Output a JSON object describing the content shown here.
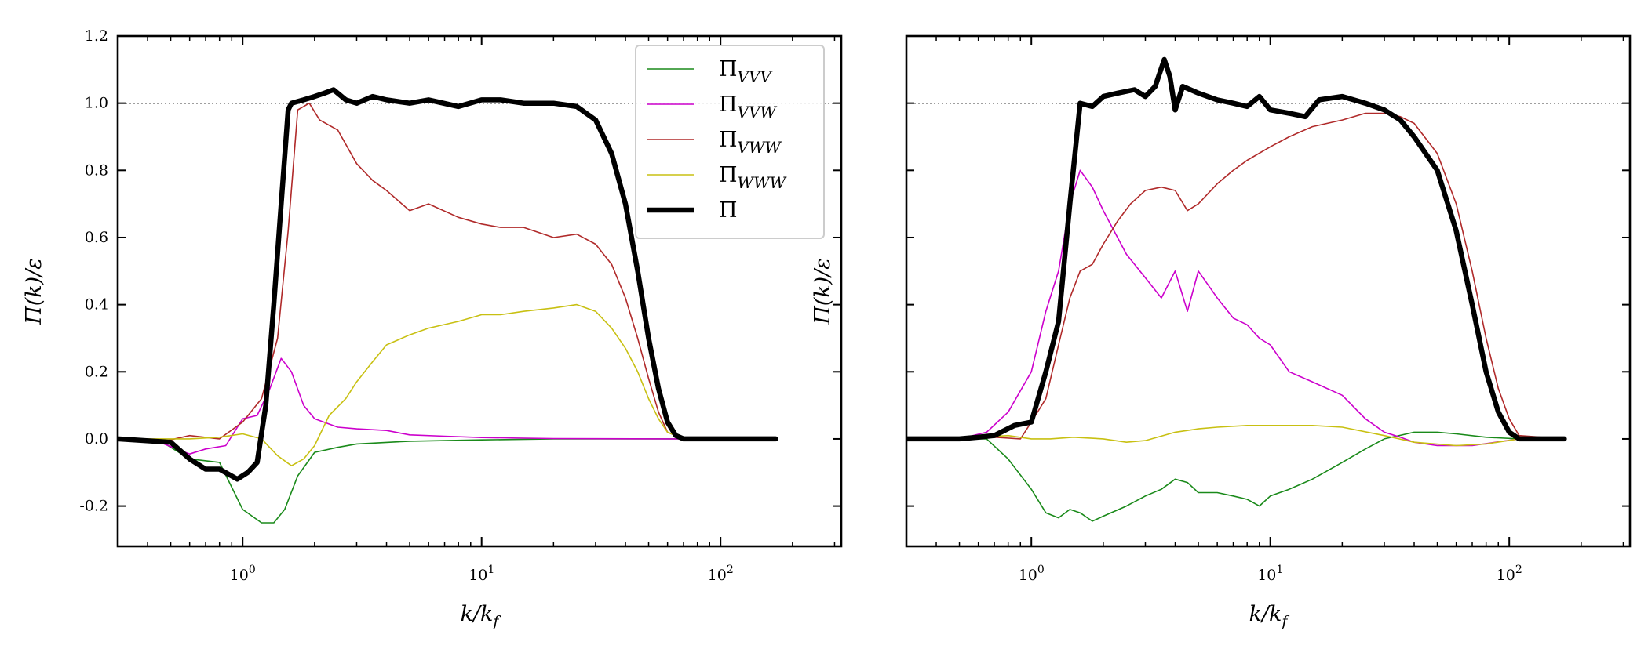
{
  "chart_data": [
    {
      "type": "line",
      "xscale": "log",
      "xlim": [
        0.3,
        320
      ],
      "ylim": [
        -0.32,
        1.2
      ],
      "xlabel": "k/k_f",
      "ylabel": "Π(k)/ε",
      "yticks": [
        "-0.2",
        "0.0",
        "0.2",
        "0.4",
        "0.6",
        "0.8",
        "1.0",
        "1.2"
      ],
      "xticks": [
        "10^0",
        "10^1",
        "10^2"
      ],
      "reference_line": {
        "y": 1.0,
        "style": "dotted"
      },
      "legend": {
        "placement": "top-right"
      },
      "series": [
        {
          "name": "Π_VVV",
          "color": "#1a8a1a",
          "width": 1.6,
          "x": [
            0.3,
            0.45,
            0.6,
            0.8,
            1.0,
            1.2,
            1.35,
            1.5,
            1.7,
            2.0,
            2.5,
            3,
            5,
            10,
            20,
            30,
            60,
            170
          ],
          "y": [
            0.0,
            -0.005,
            -0.06,
            -0.07,
            -0.21,
            -0.25,
            -0.25,
            -0.21,
            -0.11,
            -0.04,
            -0.025,
            -0.015,
            -0.007,
            -0.003,
            0,
            0,
            0,
            0
          ]
        },
        {
          "name": "Π_VVW",
          "color": "#cc00cc",
          "width": 1.6,
          "x": [
            0.3,
            0.45,
            0.6,
            0.7,
            0.85,
            1.0,
            1.15,
            1.3,
            1.45,
            1.6,
            1.8,
            2.0,
            2.5,
            3,
            4,
            5,
            7,
            10,
            20,
            60,
            170
          ],
          "y": [
            0.0,
            -0.01,
            -0.045,
            -0.03,
            -0.02,
            0.06,
            0.07,
            0.15,
            0.24,
            0.2,
            0.1,
            0.06,
            0.035,
            0.03,
            0.025,
            0.012,
            0.008,
            0.004,
            0.001,
            0,
            0
          ]
        },
        {
          "name": "Π_VWW",
          "color": "#b02a2a",
          "width": 1.6,
          "x": [
            0.3,
            0.45,
            0.6,
            0.8,
            1.0,
            1.2,
            1.4,
            1.55,
            1.7,
            1.9,
            2.1,
            2.5,
            3,
            3.5,
            4,
            5,
            6,
            8,
            10,
            12,
            15,
            20,
            25,
            30,
            35,
            40,
            45,
            50,
            55,
            60,
            70,
            170
          ],
          "y": [
            0.0,
            -0.01,
            0.01,
            0.0,
            0.05,
            0.12,
            0.3,
            0.62,
            0.98,
            1.0,
            0.95,
            0.92,
            0.82,
            0.77,
            0.74,
            0.68,
            0.7,
            0.66,
            0.64,
            0.63,
            0.63,
            0.6,
            0.61,
            0.58,
            0.52,
            0.42,
            0.3,
            0.18,
            0.08,
            0.02,
            0.0,
            0.0
          ]
        },
        {
          "name": "Π_WWW",
          "color": "#c8c012",
          "width": 1.6,
          "x": [
            0.3,
            0.45,
            0.6,
            0.8,
            1.0,
            1.2,
            1.4,
            1.6,
            1.8,
            2.0,
            2.3,
            2.7,
            3,
            3.5,
            4,
            5,
            6,
            8,
            10,
            12,
            15,
            20,
            25,
            30,
            35,
            40,
            45,
            50,
            55,
            60,
            70,
            170
          ],
          "y": [
            0.0,
            0.0,
            0.0,
            0.005,
            0.015,
            0.0,
            -0.05,
            -0.08,
            -0.06,
            -0.02,
            0.07,
            0.12,
            0.17,
            0.23,
            0.28,
            0.31,
            0.33,
            0.35,
            0.37,
            0.37,
            0.38,
            0.39,
            0.4,
            0.38,
            0.33,
            0.27,
            0.2,
            0.12,
            0.06,
            0.02,
            0.0,
            0.0
          ]
        },
        {
          "name": "Π",
          "color": "#000000",
          "width": 6.5,
          "x": [
            0.3,
            0.5,
            0.6,
            0.7,
            0.8,
            0.95,
            1.05,
            1.15,
            1.25,
            1.35,
            1.45,
            1.55,
            1.6,
            1.8,
            2.0,
            2.2,
            2.4,
            2.7,
            3,
            3.5,
            4,
            5,
            6,
            8,
            10,
            12,
            15,
            20,
            25,
            30,
            35,
            40,
            45,
            50,
            55,
            60,
            65,
            70,
            80,
            170
          ],
          "y": [
            0.0,
            -0.01,
            -0.06,
            -0.09,
            -0.09,
            -0.12,
            -0.1,
            -0.07,
            0.1,
            0.4,
            0.7,
            0.98,
            1.0,
            1.01,
            1.02,
            1.03,
            1.04,
            1.01,
            1.0,
            1.02,
            1.01,
            1.0,
            1.01,
            0.99,
            1.01,
            1.01,
            1.0,
            1.0,
            0.99,
            0.95,
            0.85,
            0.7,
            0.5,
            0.3,
            0.15,
            0.05,
            0.01,
            0.0,
            0.0,
            0.0
          ]
        }
      ]
    },
    {
      "type": "line",
      "xscale": "log",
      "xlim": [
        0.3,
        320
      ],
      "ylim": [
        -0.32,
        1.2
      ],
      "xlabel": "k/k_f",
      "ylabel": "Π(k)/ε",
      "xticks": [
        "10^0",
        "10^1",
        "10^2"
      ],
      "reference_line": {
        "y": 1.0,
        "style": "dotted"
      },
      "series": [
        {
          "name": "Π_VVV",
          "color": "#1a8a1a",
          "width": 1.6,
          "x": [
            0.3,
            0.5,
            0.65,
            0.8,
            1.0,
            1.15,
            1.3,
            1.45,
            1.6,
            1.8,
            2.0,
            2.5,
            3,
            3.5,
            4,
            4.5,
            5,
            6,
            7,
            8,
            9,
            10,
            12,
            15,
            20,
            25,
            30,
            40,
            50,
            60,
            80,
            110,
            170
          ],
          "y": [
            0.0,
            0.0,
            0.0,
            -0.06,
            -0.15,
            -0.22,
            -0.235,
            -0.21,
            -0.22,
            -0.245,
            -0.23,
            -0.2,
            -0.17,
            -0.15,
            -0.12,
            -0.13,
            -0.16,
            -0.16,
            -0.17,
            -0.18,
            -0.2,
            -0.17,
            -0.15,
            -0.12,
            -0.07,
            -0.03,
            0.0,
            0.02,
            0.02,
            0.015,
            0.005,
            0.0,
            0.0
          ]
        },
        {
          "name": "Π_VVW",
          "color": "#cc00cc",
          "width": 1.6,
          "x": [
            0.3,
            0.5,
            0.65,
            0.8,
            1.0,
            1.15,
            1.3,
            1.45,
            1.6,
            1.8,
            2.0,
            2.5,
            3,
            3.5,
            4,
            4.5,
            5,
            6,
            7,
            8,
            9,
            10,
            12,
            15,
            20,
            25,
            30,
            35,
            40,
            50,
            70,
            110,
            170
          ],
          "y": [
            0.0,
            0.0,
            0.02,
            0.08,
            0.2,
            0.38,
            0.5,
            0.7,
            0.8,
            0.75,
            0.68,
            0.55,
            0.48,
            0.42,
            0.5,
            0.38,
            0.5,
            0.42,
            0.36,
            0.34,
            0.3,
            0.28,
            0.2,
            0.17,
            0.13,
            0.06,
            0.02,
            0.005,
            -0.01,
            -0.02,
            -0.02,
            0.0,
            0.0
          ]
        },
        {
          "name": "Π_VWW",
          "color": "#b02a2a",
          "width": 1.6,
          "x": [
            0.3,
            0.5,
            0.7,
            0.9,
            1.0,
            1.15,
            1.3,
            1.45,
            1.6,
            1.8,
            2.0,
            2.3,
            2.6,
            3,
            3.5,
            4,
            4.5,
            5,
            6,
            7,
            8,
            10,
            12,
            15,
            20,
            25,
            30,
            35,
            40,
            50,
            60,
            70,
            80,
            90,
            100,
            110,
            170
          ],
          "y": [
            0.0,
            0.0,
            0.005,
            0.0,
            0.05,
            0.12,
            0.28,
            0.42,
            0.5,
            0.52,
            0.58,
            0.65,
            0.7,
            0.74,
            0.75,
            0.74,
            0.68,
            0.7,
            0.76,
            0.8,
            0.83,
            0.87,
            0.9,
            0.93,
            0.95,
            0.97,
            0.97,
            0.96,
            0.94,
            0.85,
            0.7,
            0.5,
            0.3,
            0.15,
            0.06,
            0.01,
            0.0
          ]
        },
        {
          "name": "Π_WWW",
          "color": "#c8c012",
          "width": 1.6,
          "x": [
            0.3,
            0.6,
            0.8,
            1.0,
            1.2,
            1.5,
            2.0,
            2.5,
            3,
            4,
            5,
            6,
            8,
            10,
            15,
            20,
            30,
            40,
            60,
            80,
            110,
            170
          ],
          "y": [
            0.0,
            0.005,
            0.01,
            0.0,
            0.0,
            0.005,
            0.0,
            -0.01,
            -0.005,
            0.02,
            0.03,
            0.035,
            0.04,
            0.04,
            0.04,
            0.035,
            0.01,
            -0.01,
            -0.02,
            -0.015,
            0.0,
            0.0
          ]
        },
        {
          "name": "Π",
          "color": "#000000",
          "width": 6.5,
          "x": [
            0.3,
            0.5,
            0.6,
            0.7,
            0.85,
            1.0,
            1.15,
            1.3,
            1.45,
            1.6,
            1.8,
            2.0,
            2.3,
            2.7,
            3,
            3.3,
            3.6,
            3.8,
            4.0,
            4.3,
            5,
            6,
            7,
            8,
            9,
            10,
            12,
            14,
            16,
            20,
            25,
            30,
            35,
            40,
            50,
            60,
            70,
            80,
            90,
            100,
            110,
            120,
            170
          ],
          "y": [
            0.0,
            0.0,
            0.005,
            0.01,
            0.04,
            0.05,
            0.2,
            0.35,
            0.7,
            1.0,
            0.99,
            1.02,
            1.03,
            1.04,
            1.02,
            1.05,
            1.13,
            1.08,
            0.98,
            1.05,
            1.03,
            1.01,
            1.0,
            0.99,
            1.02,
            0.98,
            0.97,
            0.96,
            1.01,
            1.02,
            1.0,
            0.98,
            0.95,
            0.9,
            0.8,
            0.62,
            0.4,
            0.2,
            0.08,
            0.02,
            0.0,
            0.0,
            0.0
          ]
        }
      ]
    }
  ]
}
